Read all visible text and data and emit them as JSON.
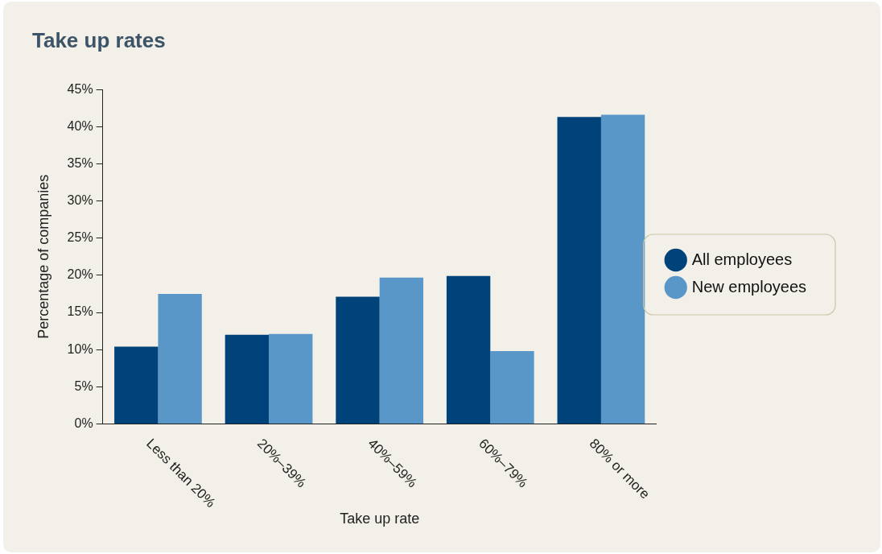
{
  "chart_data": {
    "type": "bar",
    "title": "Take up rates",
    "xlabel": "Take up rate",
    "ylabel": "Percentage of companies",
    "categories": [
      "Less than 20%",
      "20%–39%",
      "40%–59%",
      "60%–79%",
      "80% or more"
    ],
    "series": [
      {
        "name": "All employees",
        "color": "#00427a",
        "values": [
          10.4,
          12.0,
          17.1,
          19.9,
          41.3
        ]
      },
      {
        "name": "New employees",
        "color": "#5a97c9",
        "values": [
          17.5,
          12.1,
          19.7,
          9.8,
          41.6
        ]
      }
    ],
    "ylim": [
      0,
      45
    ],
    "yticks": [
      {
        "value": 0,
        "label": "0%"
      },
      {
        "value": 5,
        "label": "5%"
      },
      {
        "value": 10,
        "label": "10%"
      },
      {
        "value": 15,
        "label": "15%"
      },
      {
        "value": 20,
        "label": "20%"
      },
      {
        "value": 25,
        "label": "25%"
      },
      {
        "value": 30,
        "label": "30%"
      },
      {
        "value": 35,
        "label": "35%"
      },
      {
        "value": 40,
        "label": "40%"
      },
      {
        "value": 45,
        "label": "45%"
      }
    ],
    "grid": false,
    "legend": "right"
  }
}
